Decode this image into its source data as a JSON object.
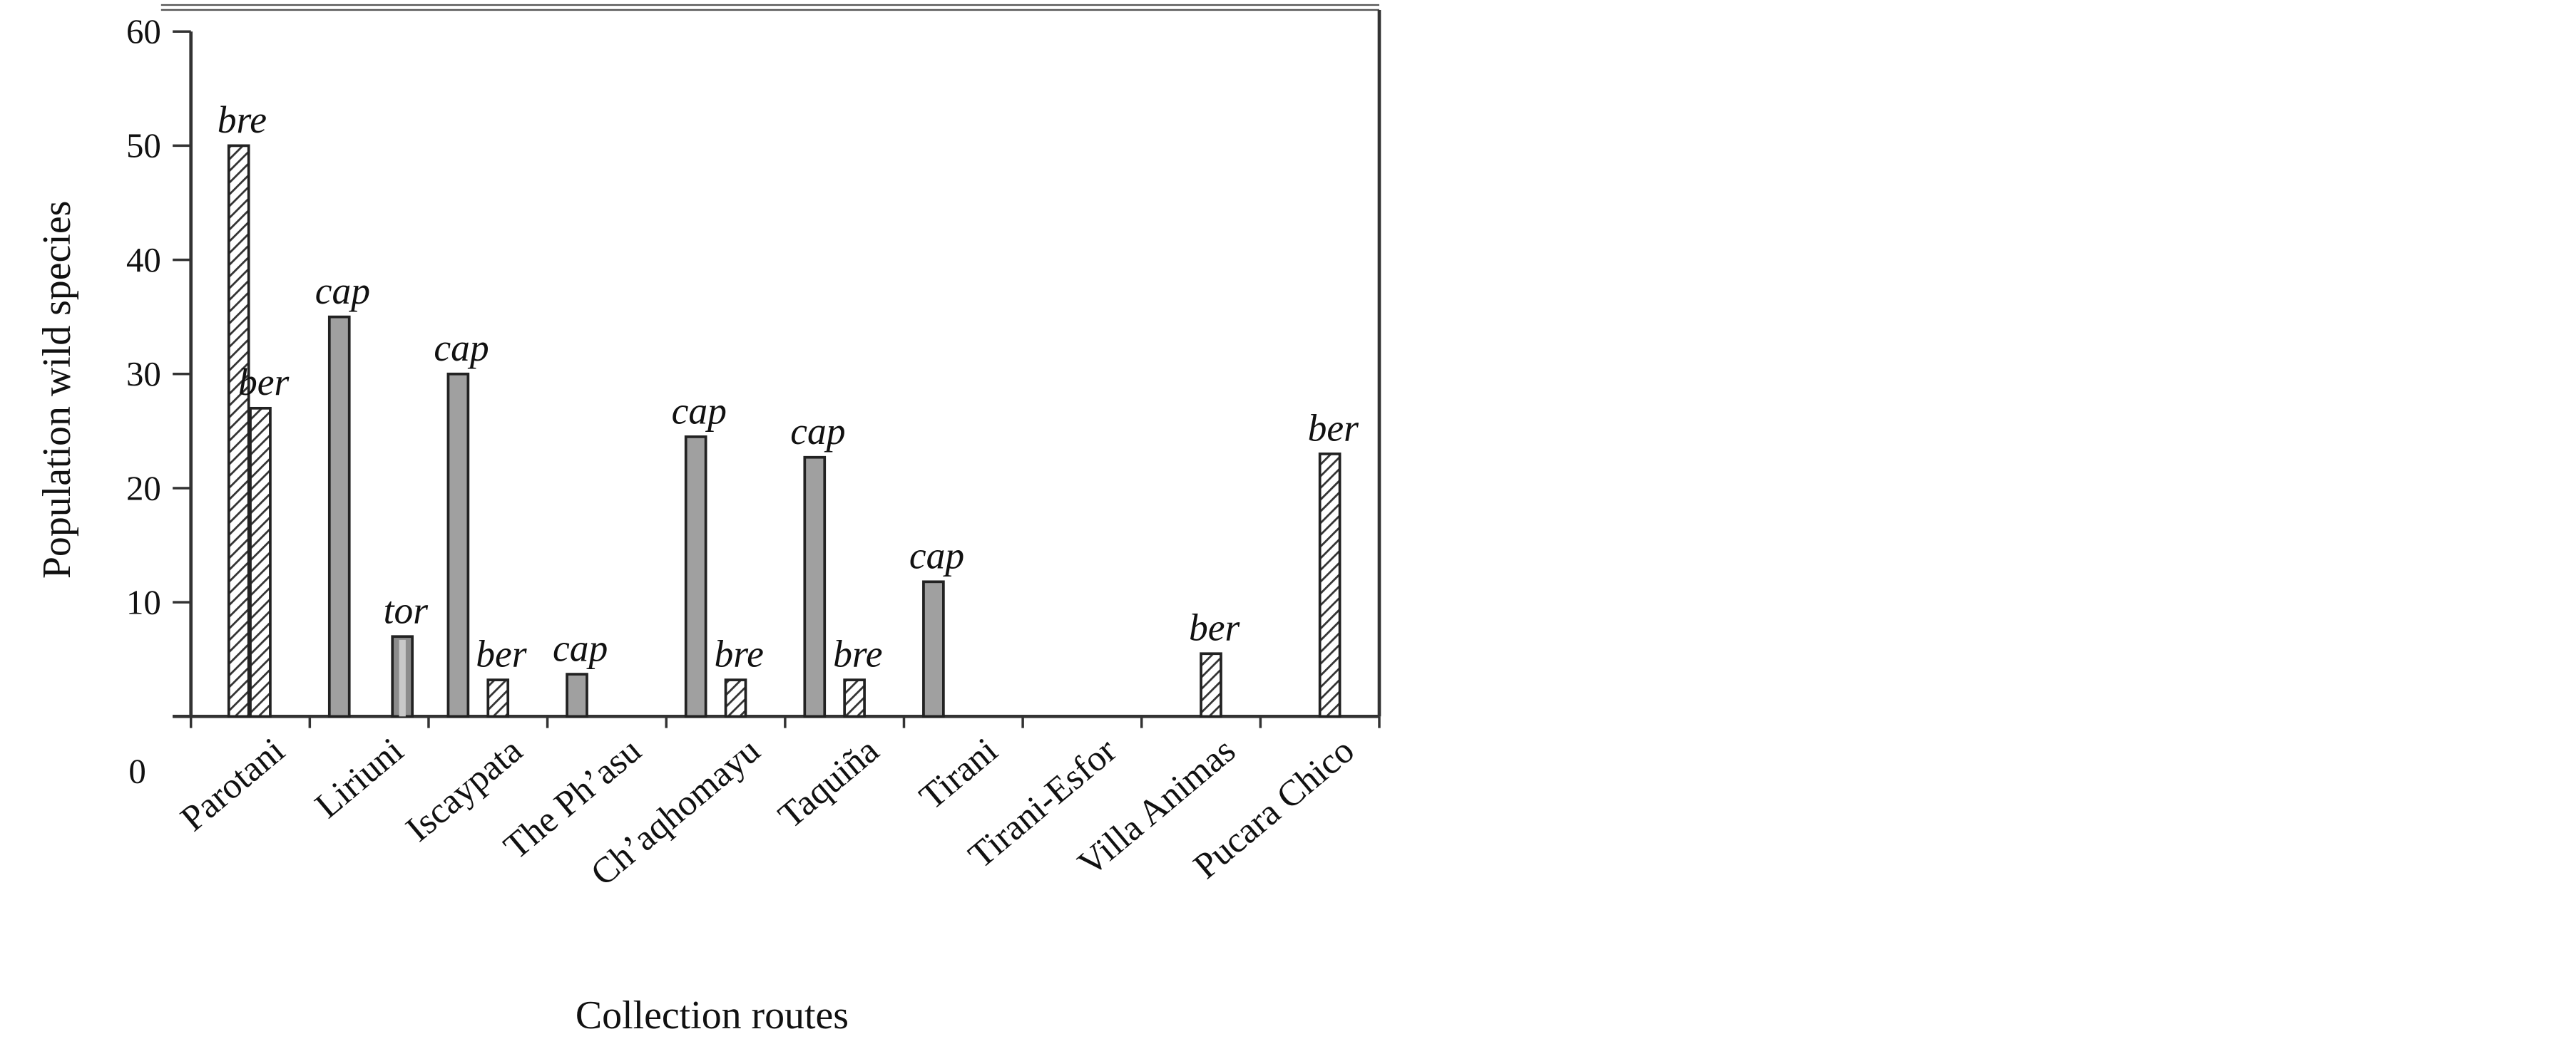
{
  "chart_data": {
    "type": "bar",
    "x_label": "Collection routes",
    "y_label": "Population wild species",
    "categories": [
      "Parotani",
      "Liriuni",
      "Iscaypata",
      "The Ph’asu",
      "Ch’aqhomayu",
      "Taquiña",
      "Tirani",
      "Tirani-Esfor",
      "Villa Animas",
      "Pucara Chico"
    ],
    "series": [
      {
        "color": "#a0a0a0",
        "pattern": "solid",
        "values": [
          null,
          35,
          30,
          3.7,
          24.5,
          22.7,
          11.8,
          null,
          null,
          null
        ],
        "value_labels": [
          null,
          "cap",
          "cap",
          "cap",
          "cap",
          "cap",
          "cap",
          null,
          null,
          null
        ]
      },
      {
        "color": "#333333",
        "pattern": "hatch",
        "values": [
          50,
          null,
          null,
          null,
          null,
          null,
          null,
          null,
          null,
          null
        ],
        "value_labels": [
          "bre",
          null,
          null,
          null,
          null,
          null,
          null,
          null,
          null,
          null
        ]
      },
      {
        "color": "#333333",
        "pattern": "hatch",
        "values": [
          27,
          null,
          3.2,
          null,
          3.2,
          3.2,
          null,
          null,
          5.5,
          23
        ],
        "value_labels": [
          "ber",
          null,
          "ber",
          null,
          "bre",
          "bre",
          null,
          null,
          "ber",
          "ber"
        ]
      },
      {
        "color": "#8c8c8c",
        "pattern": "striped",
        "values": [
          null,
          7,
          null,
          null,
          null,
          null,
          null,
          null,
          null,
          null
        ],
        "value_labels": [
          null,
          "tor",
          null,
          null,
          null,
          null,
          null,
          null,
          null,
          null
        ]
      }
    ],
    "ylim": [
      0,
      60
    ],
    "yticks": [
      0,
      10,
      20,
      30,
      40,
      50,
      60
    ]
  }
}
